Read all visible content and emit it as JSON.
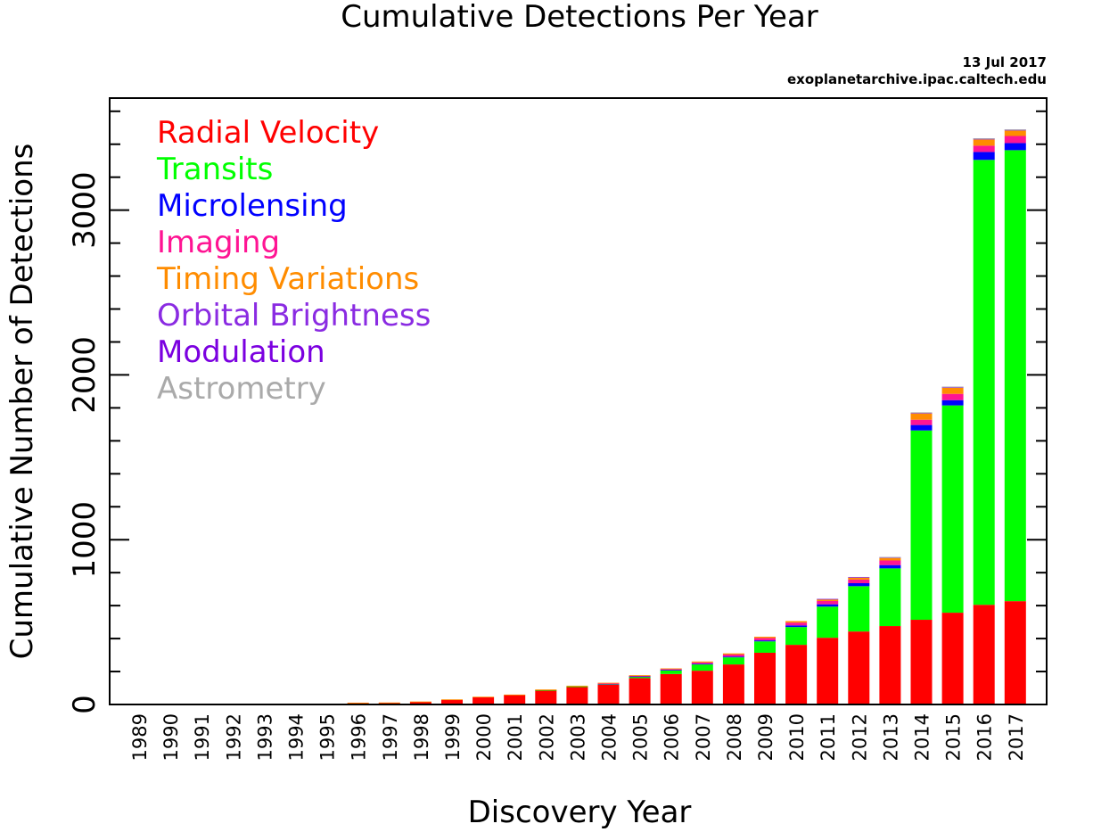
{
  "chart_data": {
    "type": "bar",
    "stacked": true,
    "title": "Cumulative Detections Per Year",
    "date": "13 Jul 2017",
    "source": "exoplanetarchive.ipac.caltech.edu",
    "xlabel": "Discovery Year",
    "ylabel": "Cumulative Number of Detections",
    "ylim": [
      0,
      3680
    ],
    "yticks_major": [
      0,
      1000,
      2000,
      3000
    ],
    "ytick_minor_step": 200,
    "legend_position": "top-left",
    "categories": [
      "1989",
      "1990",
      "1991",
      "1992",
      "1993",
      "1994",
      "1995",
      "1996",
      "1997",
      "1998",
      "1999",
      "2000",
      "2001",
      "2002",
      "2003",
      "2004",
      "2005",
      "2006",
      "2007",
      "2008",
      "2009",
      "2010",
      "2011",
      "2012",
      "2013",
      "2014",
      "2015",
      "2016",
      "2017"
    ],
    "series": [
      {
        "name": "Radial Velocity",
        "color": "#ff0000",
        "values": [
          1,
          1,
          1,
          1,
          1,
          1,
          2,
          8,
          9,
          15,
          28,
          44,
          57,
          87,
          108,
          120,
          160,
          185,
          205,
          243,
          314,
          362,
          405,
          443,
          476,
          514,
          557,
          605,
          627
        ]
      },
      {
        "name": "Transits",
        "color": "#00ff00",
        "values": [
          0,
          0,
          0,
          0,
          0,
          0,
          0,
          0,
          0,
          0,
          0,
          0,
          0,
          1,
          2,
          5,
          9,
          22,
          38,
          43,
          69,
          108,
          189,
          275,
          350,
          1149,
          1258,
          2700,
          2737
        ]
      },
      {
        "name": "Microlensing",
        "color": "#0000ff",
        "values": [
          0,
          0,
          0,
          0,
          0,
          0,
          0,
          0,
          0,
          0,
          0,
          0,
          0,
          0,
          0,
          1,
          2,
          3,
          4,
          5,
          6,
          10,
          14,
          18,
          20,
          33,
          32,
          48,
          43
        ]
      },
      {
        "name": "Imaging",
        "color": "#ff1493",
        "values": [
          0,
          0,
          0,
          0,
          0,
          0,
          0,
          0,
          0,
          0,
          0,
          0,
          0,
          0,
          0,
          2,
          3,
          4,
          8,
          12,
          14,
          17,
          20,
          22,
          28,
          32,
          38,
          38,
          43
        ]
      },
      {
        "name": "Timing Variations",
        "color": "#ff8c00",
        "values": [
          0,
          0,
          0,
          2,
          2,
          3,
          3,
          3,
          3,
          3,
          3,
          3,
          3,
          3,
          4,
          4,
          4,
          5,
          6,
          7,
          8,
          9,
          10,
          12,
          15,
          38,
          37,
          38,
          33
        ]
      },
      {
        "name": "Orbital Brightness",
        "color": "#8a2be2",
        "values": [
          0,
          0,
          0,
          0,
          0,
          0,
          0,
          0,
          0,
          0,
          0,
          0,
          0,
          0,
          0,
          0,
          0,
          0,
          0,
          0,
          0,
          0,
          3,
          4,
          5,
          6,
          6,
          6,
          6
        ]
      },
      {
        "name": "Modulation",
        "color": "#7b00e0",
        "values": [
          0,
          0,
          0,
          0,
          0,
          0,
          0,
          0,
          0,
          0,
          0,
          0,
          0,
          0,
          0,
          0,
          0,
          0,
          0,
          0,
          0,
          0,
          0,
          0,
          0,
          0,
          0,
          0,
          0
        ]
      },
      {
        "name": "Astrometry",
        "color": "#aaaaaa",
        "values": [
          0,
          0,
          0,
          0,
          0,
          0,
          0,
          0,
          0,
          0,
          0,
          0,
          0,
          0,
          0,
          0,
          0,
          0,
          0,
          0,
          0,
          0,
          0,
          0,
          1,
          1,
          1,
          1,
          1
        ]
      }
    ]
  }
}
